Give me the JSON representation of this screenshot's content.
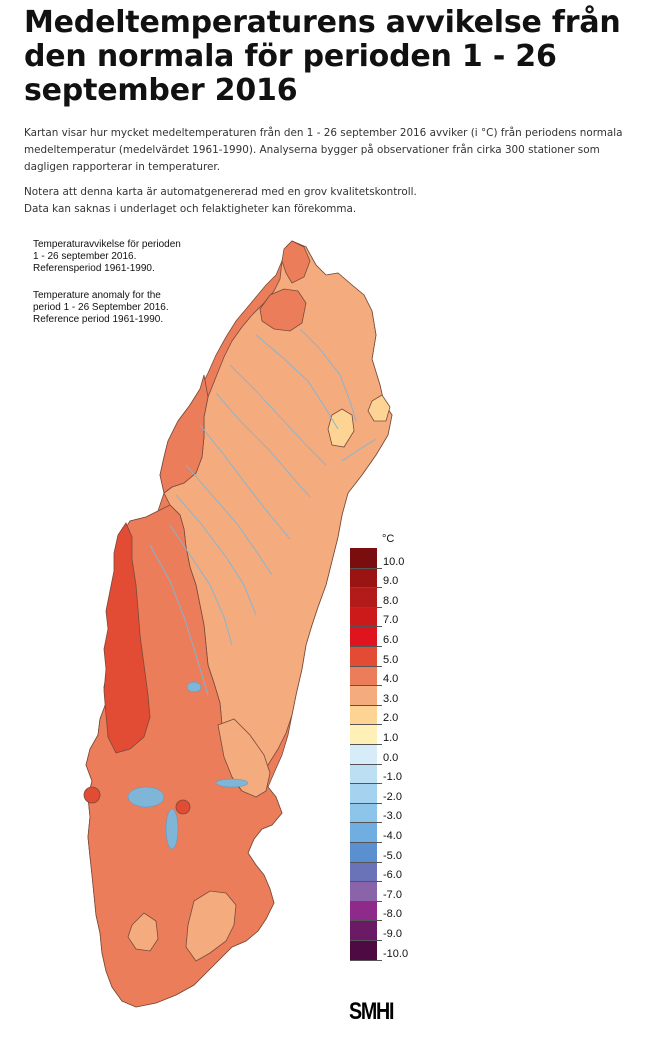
{
  "page": {
    "title": "Medeltemperaturens avvikelse från den normala för perioden 1 - 26 september 2016",
    "intro": "Kartan visar hur mycket medeltemperaturen från den 1 - 26 september 2016 avviker (i °C) från periodens normala medeltemperatur (medelvärdet 1961-1990). Analyserna bygger på observationer från cirka 300 stationer som dagligen rapporterar in temperaturer.",
    "note_line1": "Notera att denna karta är automatgenererad med en grov kvalitetskontroll.",
    "note_line2": "Data kan saknas i underlaget och felaktigheter kan förekomma."
  },
  "map": {
    "caption_sv": [
      "Temperaturavvikelse för perioden",
      "1 - 26 september 2016.",
      "Referensperiod 1961-1990."
    ],
    "caption_en": [
      "Temperature anomaly for the",
      "period 1 - 26 September 2016.",
      "Reference period 1961-1990."
    ],
    "logo": "SMHI",
    "region_colors": {
      "1.0 to 2.0": "#fdd493",
      "2.0 to 3.0": "#f4ab7e",
      "3.0 to 4.0": "#ec7d5a",
      "4.0 to 5.0": "#e24b34",
      "border": "#7a4a3a",
      "water": "#7fb6d8"
    }
  },
  "legend": {
    "unit": "°C",
    "labels": [
      "10.0",
      "9.0",
      "8.0",
      "7.0",
      "6.0",
      "5.0",
      "4.0",
      "3.0",
      "2.0",
      "1.0",
      "0.0",
      "-1.0",
      "-2.0",
      "-3.0",
      "-4.0",
      "-5.0",
      "-6.0",
      "-7.0",
      "-8.0",
      "-9.0",
      "-10.0"
    ],
    "colors": [
      "#7a0e0e",
      "#9a1414",
      "#b31a1a",
      "#cc1a1a",
      "#e0141e",
      "#e24b34",
      "#ec7d5a",
      "#f4ab7e",
      "#fdd493",
      "#fff0b8",
      "#d6ecf8",
      "#bcdff3",
      "#a4d2ef",
      "#8cc4ea",
      "#70ade0",
      "#5a8fd0",
      "#6a72b8",
      "#8a64a8",
      "#8e2a8a",
      "#6b1a66",
      "#4e0a42"
    ]
  }
}
